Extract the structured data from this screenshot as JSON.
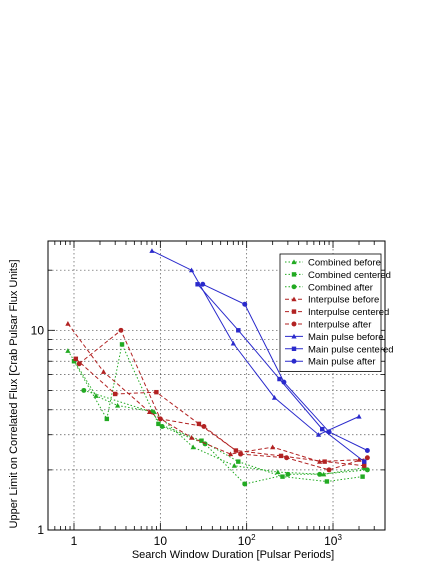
{
  "chart_data": {
    "type": "line",
    "xlabel": "Search Window Duration [Pulsar Periods]",
    "ylabel": "Upper Limit on Correlated Flux [Crab Pulsar Flux Units]",
    "x_scale": "log",
    "y_scale": "log",
    "xlim": [
      0.5,
      4000
    ],
    "ylim": [
      1,
      28
    ],
    "x_tick_labels": [
      "1",
      "10",
      "10²",
      "10³"
    ],
    "y_tick_labels": [
      "1",
      "10"
    ],
    "grid": true,
    "legend_position": "top-right",
    "series": [
      {
        "name": "Combined before",
        "color": "#22aa22",
        "marker": "triangle",
        "dash": "dotted",
        "x": [
          0.85,
          1.8,
          3.2,
          8.5,
          24,
          72,
          230,
          780,
          2300
        ],
        "y": [
          7.9,
          4.7,
          4.2,
          3.9,
          2.6,
          2.1,
          1.95,
          1.9,
          2.05
        ]
      },
      {
        "name": "Combined centered",
        "color": "#22aa22",
        "marker": "square",
        "dash": "dotted",
        "x": [
          1.0,
          2.4,
          3.6,
          9.5,
          30,
          80,
          260,
          850,
          2200
        ],
        "y": [
          7.0,
          3.6,
          8.5,
          3.4,
          2.8,
          2.2,
          1.85,
          1.75,
          1.85
        ]
      },
      {
        "name": "Combined after",
        "color": "#22aa22",
        "marker": "circle",
        "dash": "dotted",
        "x": [
          1.3,
          8.0,
          10.5,
          33,
          95,
          300,
          700,
          2500
        ],
        "y": [
          5.0,
          3.9,
          3.3,
          2.7,
          1.7,
          1.9,
          1.9,
          2.0
        ]
      },
      {
        "name": "Interpulse before",
        "color": "#b22222",
        "marker": "triangle",
        "dash": "dashed",
        "x": [
          0.85,
          2.2,
          7.5,
          23,
          65,
          200,
          700,
          2000
        ],
        "y": [
          10.8,
          6.2,
          3.9,
          2.9,
          2.4,
          2.6,
          2.2,
          2.25
        ]
      },
      {
        "name": "Interpulse centered",
        "color": "#b22222",
        "marker": "square",
        "dash": "dashed",
        "x": [
          1.05,
          3.0,
          9.0,
          28,
          75,
          250,
          800,
          2300
        ],
        "y": [
          7.2,
          4.8,
          4.9,
          3.4,
          2.5,
          2.35,
          2.2,
          2.1
        ]
      },
      {
        "name": "Interpulse after",
        "color": "#b22222",
        "marker": "circle",
        "dash": "dashed",
        "x": [
          1.15,
          3.5,
          10,
          32,
          85,
          290,
          900,
          2500
        ],
        "y": [
          6.8,
          10.0,
          3.6,
          3.3,
          2.4,
          2.3,
          2.0,
          2.3
        ]
      },
      {
        "name": "Main pulse before",
        "color": "#2a2acc",
        "marker": "triangle",
        "dash": "solid",
        "x": [
          8,
          23,
          70,
          210,
          680,
          2000
        ],
        "y": [
          25,
          20,
          8.6,
          4.6,
          3.0,
          3.7
        ]
      },
      {
        "name": "Main pulse centered",
        "color": "#2a2acc",
        "marker": "square",
        "dash": "solid",
        "x": [
          27,
          80,
          240,
          750,
          2300
        ],
        "y": [
          17,
          10,
          5.7,
          3.2,
          2.2
        ]
      },
      {
        "name": "Main pulse after",
        "color": "#2a2acc",
        "marker": "circle",
        "dash": "solid",
        "x": [
          31,
          95,
          270,
          900,
          2500
        ],
        "y": [
          17,
          13.5,
          5.5,
          3.1,
          2.5
        ]
      }
    ]
  }
}
